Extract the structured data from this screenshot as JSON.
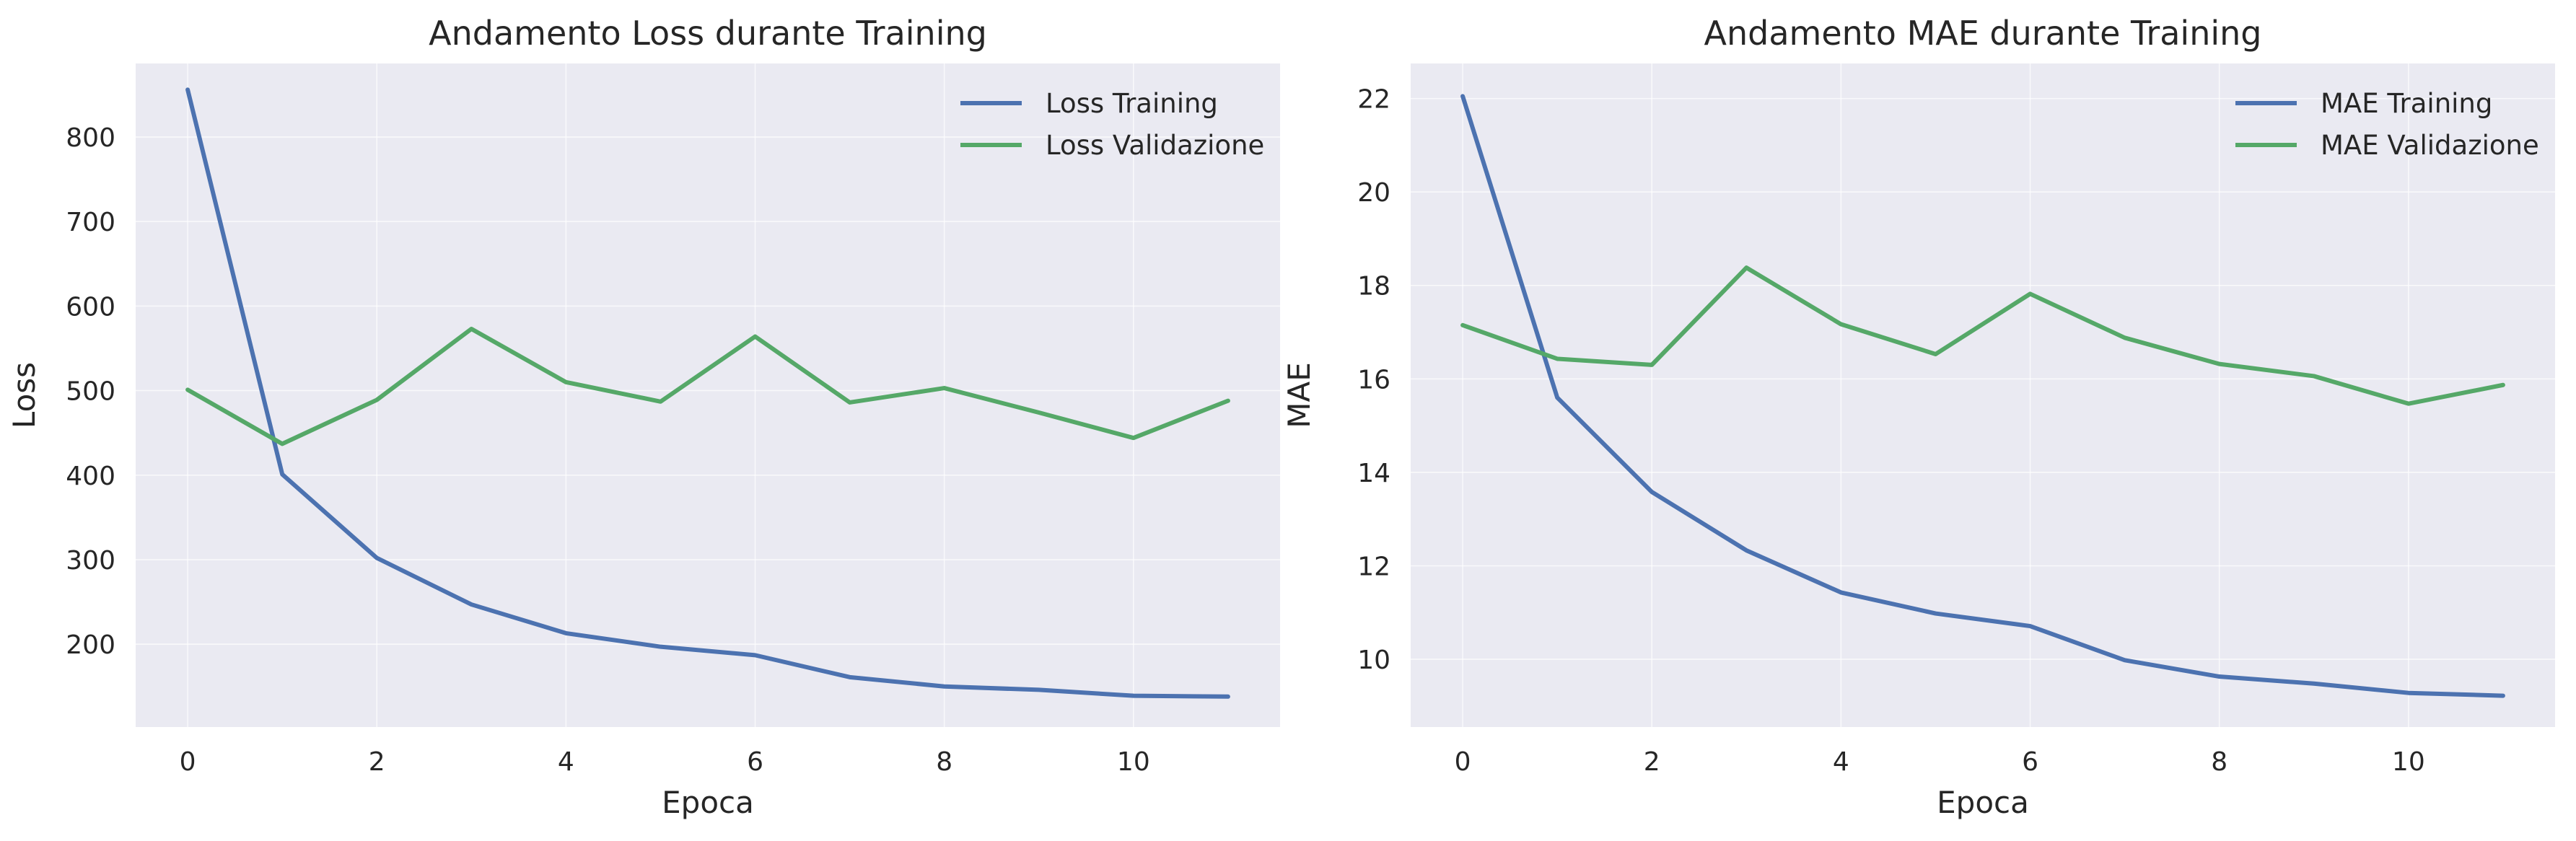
{
  "chart_data": [
    {
      "type": "line",
      "title": "Andamento Loss durante Training",
      "xlabel": "Epoca",
      "ylabel": "Loss",
      "xlim": [
        -0.55,
        11.55
      ],
      "ylim": [
        102,
        887
      ],
      "xticks": [
        0,
        2,
        4,
        6,
        8,
        10
      ],
      "yticks": [
        200,
        300,
        400,
        500,
        600,
        700,
        800
      ],
      "grid": true,
      "legend_position": "top-right",
      "x": [
        0,
        1,
        2,
        3,
        4,
        5,
        6,
        7,
        8,
        9,
        10,
        11
      ],
      "series": [
        {
          "name": "Loss Training",
          "color": "#4c72b0",
          "values": [
            856,
            401,
            302,
            247,
            213,
            197,
            187,
            161,
            150,
            146,
            139,
            138
          ]
        },
        {
          "name": "Loss Validazione",
          "color": "#55a868",
          "values": [
            501,
            437,
            489,
            573,
            510,
            487,
            564,
            486,
            503,
            474,
            444,
            488
          ]
        }
      ]
    },
    {
      "type": "line",
      "title": "Andamento MAE durante Training",
      "xlabel": "Epoca",
      "ylabel": "MAE",
      "xlim": [
        -0.55,
        11.55
      ],
      "ylim": [
        8.55,
        22.75
      ],
      "xticks": [
        0,
        2,
        4,
        6,
        8,
        10
      ],
      "yticks": [
        10,
        12,
        14,
        16,
        18,
        20,
        22
      ],
      "grid": true,
      "legend_position": "top-right",
      "x": [
        0,
        1,
        2,
        3,
        4,
        5,
        6,
        7,
        8,
        9,
        10,
        11
      ],
      "series": [
        {
          "name": "MAE Training",
          "color": "#4c72b0",
          "values": [
            22.05,
            15.6,
            13.58,
            12.33,
            11.43,
            10.98,
            10.71,
            9.98,
            9.63,
            9.48,
            9.28,
            9.22
          ]
        },
        {
          "name": "MAE Validazione",
          "color": "#55a868",
          "values": [
            17.15,
            16.43,
            16.3,
            18.38,
            17.17,
            16.53,
            17.82,
            16.88,
            16.32,
            16.06,
            15.47,
            15.87
          ]
        }
      ]
    }
  ]
}
